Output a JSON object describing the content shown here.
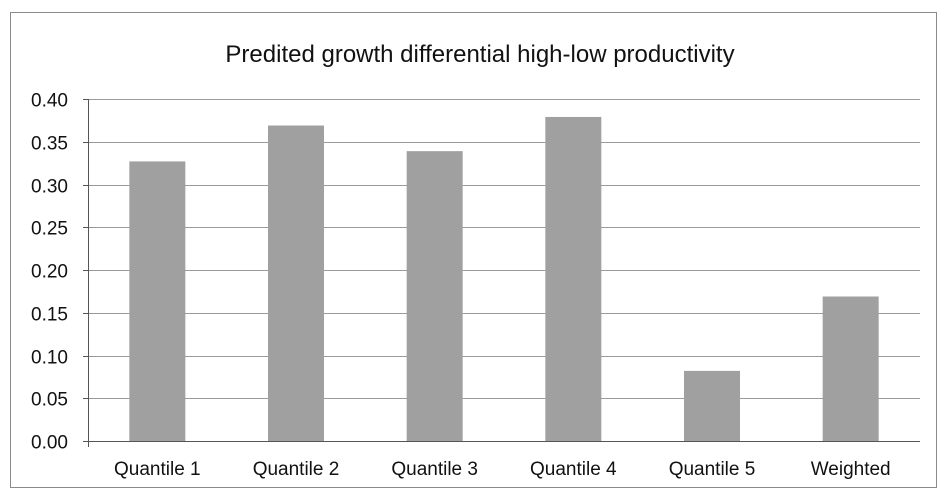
{
  "chart_data": {
    "type": "bar",
    "title": "Predited growth differential high-low productivity",
    "xlabel": "",
    "ylabel": "",
    "categories": [
      "Quantile 1",
      "Quantile 2",
      "Quantile 3",
      "Quantile 4",
      "Quantile 5",
      "Weighted"
    ],
    "values": [
      0.327,
      0.369,
      0.339,
      0.379,
      0.082,
      0.169
    ],
    "ylim": [
      0,
      0.4
    ],
    "yticks": [
      "0.00",
      "0.05",
      "0.10",
      "0.15",
      "0.20",
      "0.25",
      "0.30",
      "0.35",
      "0.40"
    ],
    "grid": true,
    "legend": "none",
    "colors": {
      "bar": "#a0a0a0",
      "grid": "#9a9a9a",
      "axis": "#555555",
      "frame": "#8a8a8a"
    }
  }
}
